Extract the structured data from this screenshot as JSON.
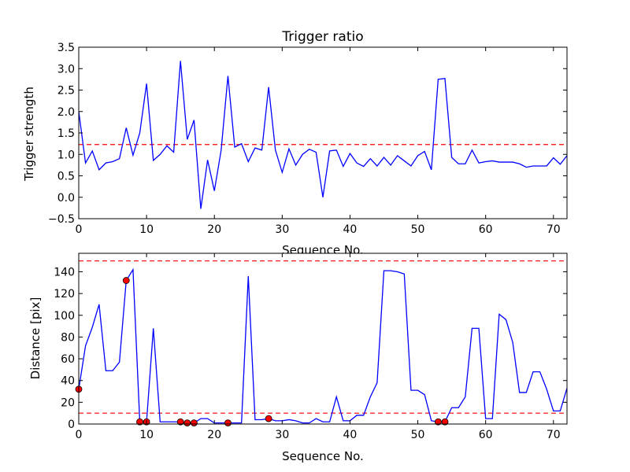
{
  "chart_data": [
    {
      "type": "line",
      "title": "Trigger ratio",
      "xlabel": "Sequence No.",
      "ylabel": "Trigger strength",
      "xlim": [
        0,
        72
      ],
      "ylim": [
        -0.5,
        3.5
      ],
      "xticks": [
        0,
        10,
        20,
        30,
        40,
        50,
        60,
        70
      ],
      "yticks": [
        -0.5,
        0.0,
        0.5,
        1.0,
        1.5,
        2.0,
        2.5,
        3.0,
        3.5
      ],
      "ytick_labels": [
        "−0.5",
        "0.0",
        "0.5",
        "1.0",
        "1.5",
        "2.0",
        "2.5",
        "3.0",
        "3.5"
      ],
      "grid": false,
      "line_color": "#0000ff",
      "threshold": {
        "value": 1.23,
        "color": "#ff0000",
        "style": "dashed"
      },
      "x": [
        0,
        1,
        2,
        3,
        4,
        5,
        6,
        7,
        8,
        9,
        10,
        11,
        12,
        13,
        14,
        15,
        16,
        17,
        18,
        19,
        20,
        21,
        22,
        23,
        24,
        25,
        26,
        27,
        28,
        29,
        30,
        31,
        32,
        33,
        34,
        35,
        36,
        37,
        38,
        39,
        40,
        41,
        42,
        43,
        44,
        45,
        46,
        47,
        48,
        49,
        50,
        51,
        52,
        53,
        54,
        55,
        56,
        57,
        58,
        59,
        60,
        61,
        62,
        63,
        64,
        65,
        66,
        67,
        68,
        69,
        70,
        71,
        72
      ],
      "y": [
        2.0,
        0.8,
        1.08,
        0.64,
        0.8,
        0.83,
        0.9,
        1.62,
        0.98,
        1.5,
        2.65,
        0.86,
        1.0,
        1.2,
        1.05,
        3.18,
        1.35,
        1.8,
        -0.27,
        0.87,
        0.15,
        1.1,
        2.83,
        1.17,
        1.25,
        0.83,
        1.15,
        1.1,
        2.57,
        1.1,
        0.58,
        1.13,
        0.75,
        1.0,
        1.12,
        1.05,
        0.0,
        1.08,
        1.1,
        0.72,
        1.02,
        0.8,
        0.72,
        0.9,
        0.73,
        0.93,
        0.75,
        0.97,
        0.85,
        0.73,
        0.97,
        1.07,
        0.64,
        2.75,
        2.77,
        0.93,
        0.78,
        0.78,
        1.1,
        0.8,
        0.83,
        0.85,
        0.82,
        0.82,
        0.82,
        0.78,
        0.7,
        0.73,
        0.73,
        0.73,
        0.92,
        0.77,
        0.97
      ]
    },
    {
      "type": "line",
      "title": "",
      "xlabel": "Sequence No.",
      "ylabel": "Distance [pix]",
      "xlim": [
        0,
        72
      ],
      "ylim": [
        0,
        157
      ],
      "xticks": [
        0,
        10,
        20,
        30,
        40,
        50,
        60,
        70
      ],
      "yticks": [
        0,
        20,
        40,
        60,
        80,
        100,
        120,
        140
      ],
      "grid": false,
      "line_color": "#0000ff",
      "thresholds": [
        {
          "value": 150,
          "color": "#ff0000",
          "style": "dashed"
        },
        {
          "value": 10,
          "color": "#ff0000",
          "style": "dashed"
        }
      ],
      "x": [
        0,
        1,
        2,
        3,
        4,
        5,
        6,
        7,
        8,
        9,
        10,
        11,
        12,
        13,
        14,
        15,
        16,
        17,
        18,
        19,
        20,
        21,
        22,
        23,
        24,
        25,
        26,
        27,
        28,
        29,
        30,
        31,
        32,
        33,
        34,
        35,
        36,
        37,
        38,
        39,
        40,
        41,
        42,
        43,
        44,
        45,
        46,
        47,
        48,
        49,
        50,
        51,
        52,
        53,
        54,
        55,
        56,
        57,
        58,
        59,
        60,
        61,
        62,
        63,
        64,
        65,
        66,
        67,
        68,
        69,
        70,
        71,
        72
      ],
      "y": [
        32,
        72,
        89,
        110,
        49,
        49,
        57,
        132,
        142,
        2,
        2,
        88,
        2,
        2,
        2,
        2,
        1,
        1,
        5,
        5,
        1,
        1,
        1,
        1,
        1,
        136,
        4,
        4,
        5,
        3,
        3,
        4,
        3,
        1,
        1,
        5,
        2,
        2,
        25,
        3,
        3,
        8,
        8,
        25,
        38,
        141,
        141,
        140,
        138,
        31,
        31,
        27,
        3,
        2,
        2,
        15,
        15,
        25,
        88,
        88,
        5,
        5,
        101,
        96,
        75,
        29,
        29,
        48,
        48,
        32,
        12,
        12,
        33
      ],
      "markers": {
        "color": "#ff0000",
        "x": [
          0,
          7,
          9,
          10,
          15,
          16,
          17,
          22,
          28,
          53,
          54
        ],
        "y": [
          32,
          132,
          2,
          2,
          2,
          1,
          1,
          1,
          5,
          2,
          2
        ]
      }
    }
  ]
}
